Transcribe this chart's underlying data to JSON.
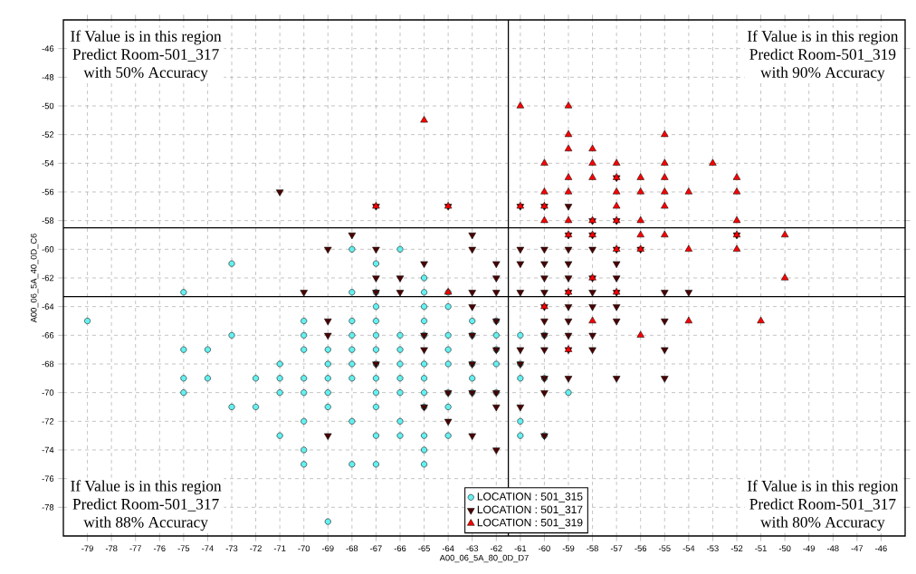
{
  "chart_data": {
    "type": "scatter",
    "xlabel": "A00_06_5A_80_0D_D7",
    "ylabel": "A00_06_5A_40_0D_C6",
    "xlim": [
      -80,
      -45
    ],
    "ylim": [
      -80,
      -44
    ],
    "xticks": [
      -79,
      -78,
      -77,
      -76,
      -75,
      -74,
      -73,
      -72,
      -71,
      -70,
      -69,
      -68,
      -67,
      -66,
      -65,
      -64,
      -63,
      -62,
      -61,
      -60,
      -59,
      -58,
      -57,
      -56,
      -55,
      -54,
      -53,
      -52,
      -51,
      -50,
      -49,
      -48,
      -47,
      -46
    ],
    "yticks": [
      -78,
      -76,
      -74,
      -72,
      -70,
      -68,
      -66,
      -64,
      -62,
      -60,
      -58,
      -56,
      -54,
      -52,
      -50,
      -48,
      -46
    ],
    "grid": true,
    "legend": "bottom",
    "series": [
      {
        "name": "LOCATION : 501_315",
        "color": "#66f0f0",
        "marker": "circle",
        "x": [
          -79,
          -75,
          -75,
          -75,
          -75,
          -74,
          -74,
          -73,
          -73,
          -73,
          -72,
          -72,
          -71,
          -71,
          -71,
          -71,
          -70,
          -70,
          -70,
          -70,
          -70,
          -70,
          -70,
          -70,
          -69,
          -69,
          -69,
          -69,
          -69,
          -69,
          -68,
          -68,
          -68,
          -68,
          -68,
          -68,
          -68,
          -68,
          -68,
          -67,
          -67,
          -67,
          -67,
          -67,
          -67,
          -67,
          -67,
          -67,
          -67,
          -67,
          -67,
          -66,
          -66,
          -66,
          -66,
          -66,
          -66,
          -66,
          -66,
          -65,
          -65,
          -65,
          -65,
          -65,
          -65,
          -65,
          -65,
          -65,
          -65,
          -65,
          -65,
          -64,
          -64,
          -64,
          -64,
          -64,
          -64,
          -64,
          -64,
          -63,
          -63,
          -63,
          -63,
          -63,
          -62,
          -62,
          -62,
          -62,
          -62,
          -61,
          -61,
          -61,
          -61,
          -61,
          -60,
          -60,
          -60,
          -59
        ],
        "values": [
          -65,
          -63,
          -67,
          -69,
          -70,
          -67,
          -69,
          -61,
          -66,
          -71,
          -69,
          -71,
          -68,
          -69,
          -70,
          -73,
          -65,
          -66,
          -67,
          -69,
          -70,
          -72,
          -74,
          -75,
          -67,
          -68,
          -69,
          -70,
          -71,
          -79,
          -60,
          -63,
          -65,
          -66,
          -67,
          -68,
          -69,
          -72,
          -75,
          -61,
          -63,
          -64,
          -65,
          -66,
          -67,
          -68,
          -69,
          -70,
          -71,
          -73,
          -75,
          -60,
          -66,
          -67,
          -68,
          -69,
          -70,
          -72,
          -73,
          -62,
          -63,
          -64,
          -65,
          -66,
          -68,
          -69,
          -70,
          -71,
          -73,
          -74,
          -75,
          -63,
          -64,
          -66,
          -67,
          -68,
          -70,
          -71,
          -73,
          -65,
          -66,
          -68,
          -69,
          -70,
          -65,
          -66,
          -67,
          -68,
          -70,
          -66,
          -68,
          -69,
          -72,
          -73,
          -66,
          -69,
          -73,
          -70
        ]
      },
      {
        "name": "LOCATION : 501_317",
        "color": "#4b0000",
        "marker": "triangle-down",
        "x": [
          -71,
          -70,
          -69,
          -69,
          -69,
          -69,
          -68,
          -67,
          -67,
          -67,
          -67,
          -67,
          -66,
          -66,
          -65,
          -65,
          -65,
          -65,
          -64,
          -64,
          -64,
          -63,
          -63,
          -63,
          -63,
          -63,
          -63,
          -63,
          -63,
          -62,
          -62,
          -62,
          -62,
          -62,
          -62,
          -62,
          -62,
          -61,
          -61,
          -61,
          -61,
          -61,
          -61,
          -61,
          -60,
          -60,
          -60,
          -60,
          -60,
          -60,
          -60,
          -60,
          -60,
          -60,
          -60,
          -60,
          -59,
          -59,
          -59,
          -59,
          -59,
          -59,
          -59,
          -59,
          -59,
          -59,
          -59,
          -58,
          -58,
          -58,
          -58,
          -58,
          -58,
          -58,
          -58,
          -57,
          -57,
          -57,
          -57,
          -57,
          -57,
          -57,
          -57,
          -57,
          -56,
          -55,
          -55,
          -55,
          -55,
          -54,
          -52
        ],
        "values": [
          -56,
          -63,
          -60,
          -65,
          -66,
          -73,
          -59,
          -57,
          -60,
          -62,
          -63,
          -68,
          -62,
          -63,
          -61,
          -66,
          -67,
          -71,
          -57,
          -70,
          -72,
          -59,
          -60,
          -63,
          -64,
          -66,
          -68,
          -70,
          -73,
          -61,
          -62,
          -63,
          -65,
          -67,
          -70,
          -71,
          -74,
          -57,
          -60,
          -61,
          -63,
          -67,
          -68,
          -71,
          -57,
          -60,
          -61,
          -62,
          -63,
          -64,
          -65,
          -66,
          -67,
          -69,
          -70,
          -73,
          -57,
          -59,
          -60,
          -61,
          -62,
          -63,
          -64,
          -65,
          -66,
          -67,
          -69,
          -58,
          -59,
          -60,
          -62,
          -63,
          -64,
          -66,
          -67,
          -55,
          -58,
          -60,
          -61,
          -62,
          -63,
          -64,
          -65,
          -69,
          -60,
          -63,
          -65,
          -67,
          -69,
          -63,
          -59
        ]
      },
      {
        "name": "LOCATION : 501_319",
        "color": "#ff0000",
        "marker": "triangle",
        "x": [
          -65,
          -67,
          -64,
          -64,
          -61,
          -61,
          -60,
          -60,
          -60,
          -60,
          -60,
          -59,
          -59,
          -59,
          -59,
          -59,
          -59,
          -59,
          -59,
          -59,
          -58,
          -58,
          -58,
          -58,
          -58,
          -58,
          -58,
          -57,
          -57,
          -57,
          -57,
          -57,
          -57,
          -57,
          -56,
          -56,
          -56,
          -56,
          -56,
          -56,
          -55,
          -55,
          -55,
          -55,
          -55,
          -55,
          -54,
          -54,
          -54,
          -53,
          -52,
          -52,
          -52,
          -52,
          -52,
          -51,
          -50,
          -50
        ],
        "values": [
          -51,
          -57,
          -57,
          -63,
          -50,
          -57,
          -54,
          -56,
          -57,
          -58,
          -64,
          -50,
          -52,
          -53,
          -55,
          -56,
          -58,
          -59,
          -63,
          -67,
          -53,
          -54,
          -55,
          -58,
          -59,
          -62,
          -65,
          -54,
          -55,
          -56,
          -57,
          -58,
          -60,
          -63,
          -55,
          -56,
          -58,
          -59,
          -60,
          -66,
          -52,
          -54,
          -55,
          -56,
          -57,
          -59,
          -56,
          -60,
          -65,
          -54,
          -55,
          -56,
          -58,
          -59,
          -60,
          -65,
          -59,
          -62
        ]
      }
    ],
    "ref_lines": [
      {
        "axis": "x",
        "value": -61.5,
        "color": "#000000"
      },
      {
        "axis": "y",
        "value": -63.3,
        "color": "#000000"
      },
      {
        "axis": "y",
        "value": -58.5,
        "color": "#000000"
      }
    ],
    "annotations": [
      "If  Value is in this region",
      "Predict Room-501_317",
      "with 50% Accuracy",
      "If  Value is in this region",
      "Predict Room-501_319",
      "with 90% Accuracy",
      "If  Value is in this region",
      "Predict Room-501_317",
      "with 88% Accuracy",
      "If  Value is in this region",
      "Predict Room-501_317",
      "with 80% Accuracy"
    ]
  }
}
